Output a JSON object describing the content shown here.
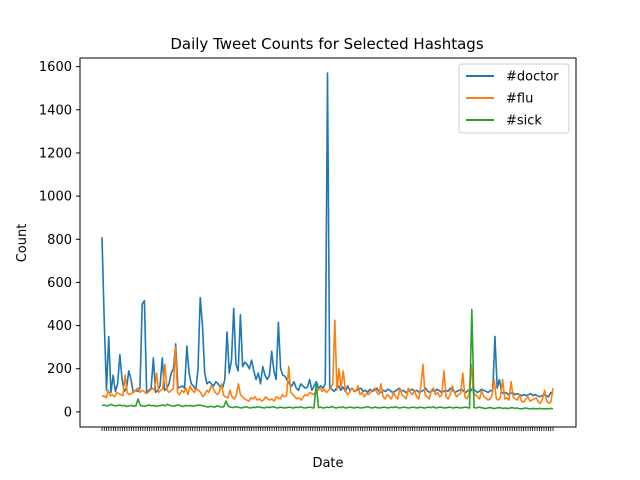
{
  "chart_data": {
    "type": "line",
    "title": "Daily Tweet Counts for Selected Hashtags",
    "xlabel": "Date",
    "ylabel": "Count",
    "ylim": [
      -70,
      1640
    ],
    "yticks": [
      0,
      200,
      400,
      600,
      800,
      1000,
      1200,
      1400,
      1600
    ],
    "x_tick_count": 200,
    "legend_position": "upper right",
    "grid": false,
    "series": [
      {
        "name": "#doctor",
        "color": "#1f77b4",
        "values": [
          810,
          420,
          100,
          350,
          90,
          170,
          95,
          130,
          265,
          150,
          95,
          110,
          190,
          150,
          90,
          100,
          95,
          110,
          500,
          515,
          90,
          100,
          110,
          250,
          90,
          100,
          120,
          250,
          100,
          110,
          130,
          180,
          200,
          315,
          110,
          115,
          120,
          110,
          305,
          180,
          130,
          120,
          100,
          200,
          530,
          400,
          180,
          130,
          140,
          130,
          120,
          140,
          130,
          115,
          110,
          150,
          370,
          180,
          240,
          480,
          220,
          190,
          450,
          210,
          230,
          220,
          200,
          240,
          190,
          150,
          180,
          130,
          210,
          170,
          150,
          170,
          280,
          190,
          150,
          415,
          200,
          170,
          165,
          145,
          130,
          120,
          140,
          110,
          100,
          130,
          120,
          110,
          115,
          150,
          100,
          120,
          140,
          110,
          120,
          110,
          130,
          1570,
          110,
          105,
          95,
          110,
          120,
          100,
          115,
          95,
          120,
          100,
          110,
          95,
          100,
          105,
          110,
          95,
          100,
          90,
          105,
          95,
          100,
          110,
          95,
          90,
          100,
          95,
          105,
          100,
          90,
          95,
          100,
          110,
          95,
          100,
          90,
          95,
          100,
          105,
          95,
          100,
          90,
          95,
          100,
          110,
          95,
          90,
          100,
          95,
          105,
          100,
          90,
          95,
          100,
          95,
          110,
          100,
          90,
          95,
          100,
          105,
          95,
          90,
          100,
          95,
          110,
          100,
          90,
          95,
          105,
          100,
          95,
          90,
          100,
          95,
          350,
          110,
          150,
          90,
          85,
          90,
          80,
          85,
          90,
          80,
          85,
          80,
          75,
          80,
          75,
          80,
          85,
          75,
          80,
          75,
          70,
          75,
          80,
          75,
          70,
          90,
          85
        ]
      },
      {
        "name": "#flu",
        "color": "#ff7f0e",
        "values": [
          70,
          75,
          65,
          100,
          75,
          80,
          70,
          90,
          85,
          80,
          75,
          170,
          90,
          80,
          85,
          95,
          100,
          110,
          90,
          100,
          95,
          85,
          90,
          100,
          110,
          100,
          180,
          90,
          100,
          110,
          220,
          100,
          90,
          100,
          110,
          300,
          90,
          80,
          100,
          90,
          110,
          80,
          120,
          100,
          90,
          110,
          100,
          90,
          70,
          80,
          100,
          90,
          120,
          110,
          90,
          80,
          95,
          130,
          75,
          70,
          65,
          100,
          70,
          60,
          75,
          130,
          80,
          70,
          60,
          55,
          50,
          65,
          60,
          70,
          55,
          60,
          50,
          55,
          70,
          60,
          55,
          60,
          50,
          70,
          65,
          60,
          80,
          70,
          75,
          210,
          90,
          80,
          70,
          60,
          65,
          55,
          70,
          80,
          75,
          90,
          85,
          80,
          95,
          100,
          110,
          95,
          105,
          90,
          100,
          110,
          130,
          425,
          100,
          200,
          110,
          190,
          100,
          80,
          90,
          110,
          100,
          95,
          120,
          80,
          90,
          70,
          85,
          80,
          90,
          100,
          110,
          90,
          80,
          130,
          70,
          60,
          80,
          70,
          60,
          90,
          70,
          60,
          110,
          80,
          70,
          60,
          110,
          90,
          80,
          100,
          70,
          60,
          120,
          220,
          80,
          70,
          60,
          100,
          110,
          80,
          90,
          70,
          80,
          190,
          70,
          60,
          80,
          120,
          90,
          70,
          80,
          85,
          180,
          70,
          60,
          80,
          220,
          90,
          80,
          70,
          60,
          100,
          70,
          65,
          55,
          60,
          80,
          150,
          60,
          55,
          70,
          150,
          60,
          65,
          55,
          140,
          70,
          60,
          55,
          80,
          50,
          45,
          60,
          70,
          50,
          55,
          60,
          65,
          45,
          40,
          60,
          100,
          50,
          40,
          45,
          110
        ]
      },
      {
        "name": "#sick",
        "color": "#2ca02c",
        "values": [
          30,
          32,
          28,
          30,
          35,
          30,
          28,
          30,
          32,
          28,
          30,
          25,
          28,
          30,
          26,
          28,
          60,
          30,
          28,
          26,
          30,
          32,
          28,
          30,
          26,
          28,
          30,
          32,
          28,
          35,
          30,
          28,
          26,
          30,
          32,
          28,
          25,
          30,
          28,
          30,
          26,
          28,
          30,
          32,
          30,
          28,
          25,
          22,
          26,
          24,
          22,
          28,
          25,
          22,
          24,
          50,
          26,
          22,
          20,
          24,
          22,
          20,
          18,
          22,
          24,
          20,
          18,
          22,
          20,
          24,
          22,
          20,
          18,
          22,
          20,
          22,
          24,
          20,
          18,
          22,
          20,
          18,
          20,
          22,
          20,
          18,
          22,
          20,
          24,
          20,
          18,
          20,
          22,
          20,
          18,
          130,
          20,
          22,
          18,
          20,
          22,
          20,
          25,
          20,
          18,
          22,
          20,
          24,
          18,
          20,
          22,
          20,
          18,
          22,
          20,
          18,
          20,
          22,
          24,
          20,
          18,
          22,
          20,
          18,
          20,
          22,
          20,
          18,
          22,
          20,
          24,
          20,
          18,
          20,
          22,
          20,
          18,
          20,
          22,
          20,
          18,
          22,
          20,
          18,
          20,
          22,
          20,
          24,
          18,
          20,
          22,
          20,
          18,
          20,
          22,
          20,
          18,
          22,
          20,
          18,
          20,
          22,
          20,
          18,
          475,
          20,
          18,
          22,
          20,
          18,
          15,
          18,
          20,
          18,
          15,
          18,
          20,
          18,
          16,
          18,
          15,
          18,
          20,
          16,
          18,
          15,
          14,
          16,
          18,
          15,
          14,
          16,
          15,
          14,
          16,
          15,
          14,
          15,
          14,
          16,
          15
        ]
      }
    ]
  }
}
